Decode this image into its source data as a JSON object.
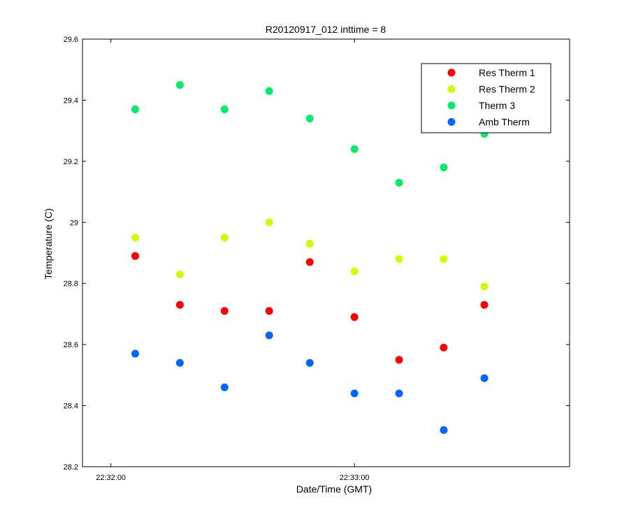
{
  "chart_data": {
    "type": "scatter",
    "title": "R20120917_012 inttime = 8",
    "xlabel": "Date/Time (GMT)",
    "ylabel": "Temperature (C)",
    "xlim": [
      "22:31:53",
      "22:33:53"
    ],
    "ylim": [
      28.2,
      29.6
    ],
    "x_ticks": [
      "22:32:00",
      "22:33:00"
    ],
    "y_ticks": [
      "28.2",
      "28.4",
      "28.6",
      "28.8",
      "29",
      "29.2",
      "29.4",
      "29.6"
    ],
    "grid": false,
    "legend_position": "top-right",
    "x": [
      "22:32:06",
      "22:32:17",
      "22:32:28",
      "22:32:39",
      "22:32:49",
      "22:33:00",
      "22:33:11",
      "22:33:22",
      "22:33:32"
    ],
    "series": [
      {
        "name": "Res Therm 1",
        "color": "#ff0000",
        "values": [
          28.89,
          28.73,
          28.71,
          28.71,
          28.87,
          28.69,
          28.55,
          28.59,
          28.73
        ]
      },
      {
        "name": "Res Therm 2",
        "color": "#ccff00",
        "values": [
          28.95,
          28.83,
          28.95,
          29.0,
          28.93,
          28.84,
          28.88,
          28.88,
          28.79
        ]
      },
      {
        "name": "Therm 3",
        "color": "#00ee66",
        "values": [
          29.37,
          29.45,
          29.37,
          29.43,
          29.34,
          29.24,
          29.13,
          29.18,
          29.29
        ]
      },
      {
        "name": "Amb Therm",
        "color": "#0066ff",
        "values": [
          28.57,
          28.54,
          28.46,
          28.63,
          28.54,
          28.44,
          28.44,
          28.32,
          28.49
        ]
      }
    ]
  }
}
